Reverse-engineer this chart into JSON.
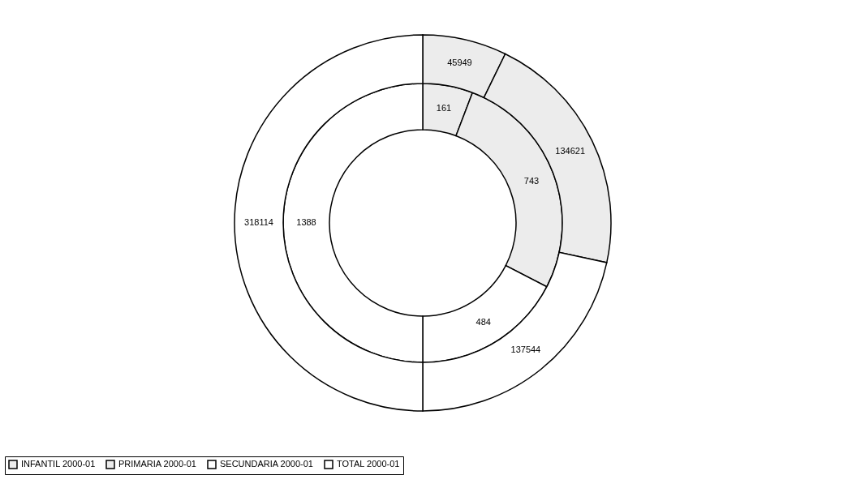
{
  "chart_data": {
    "type": "donut",
    "categories": [
      "INFANTIL 2000-01",
      "PRIMARIA 2000-01",
      "SECUNDARIA 2000-01",
      "TOTAL 2000-01"
    ],
    "colors": [
      "#ececec",
      "#ececec",
      "#ffffff",
      "#ffffff"
    ],
    "series": [
      {
        "values": [
          161,
          743,
          484,
          1388
        ]
      },
      {
        "values": [
          45949,
          134621,
          137544,
          318114
        ]
      }
    ],
    "data_labels": true,
    "legend": "bottom"
  }
}
